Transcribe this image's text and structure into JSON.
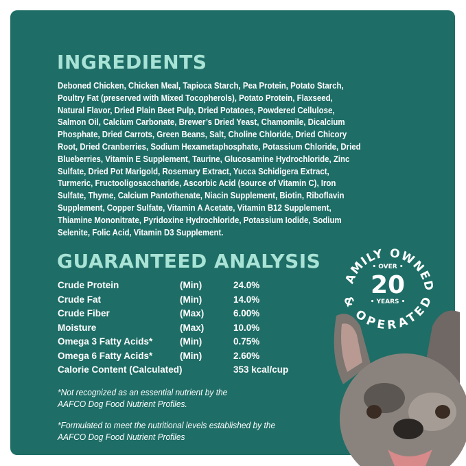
{
  "ingredients": {
    "title": "INGREDIENTS",
    "lines": [
      "Deboned Chicken, Chicken Meal, Tapioca Starch, Pea Protein, Potato Starch,",
      "Poultry Fat (preserved with Mixed Tocopherols), Potato Protein, Flaxseed,",
      "Natural Flavor, Dried Plain Beet Pulp, Dried Potatoes, Powdered Cellulose,",
      "Salmon Oil, Calcium Carbonate, Brewer’s Dried Yeast, Chamomile, Dicalcium",
      "Phosphate, Dried Carrots, Green Beans, Salt, Choline Chloride, Dried Chicory",
      "Root, Dried Cranberries, Sodium Hexametaphosphate, Potassium Chloride, Dried",
      "Blueberries, Vitamin E Supplement, Taurine, Glucosamine Hydrochloride, Zinc",
      "Sulfate, Dried Pot Marigold, Rosemary Extract, Yucca Schidigera Extract,",
      "Turmeric, Fructooligosaccharide, Ascorbic Acid (source of Vitamin C), Iron",
      "Sulfate, Thyme, Calcium Pantothenate, Niacin Supplement, Biotin, Riboflavin",
      "Supplement, Copper Sulfate, Vitamin A Acetate, Vitamin B12 Supplement,",
      "Thiamine Mononitrate, Pyridoxine Hydrochloride, Potassium Iodide, Sodium",
      "Selenite, Folic Acid, Vitamin D3 Supplement."
    ]
  },
  "analysis": {
    "title": "GUARANTEED ANALYSIS",
    "rows": [
      {
        "name": "Crude Protein",
        "basis": "(Min)",
        "value": "24.0%"
      },
      {
        "name": "Crude Fat",
        "basis": "(Min)",
        "value": "14.0%"
      },
      {
        "name": "Crude Fiber",
        "basis": "(Max)",
        "value": "6.00%"
      },
      {
        "name": "Moisture",
        "basis": "(Max)",
        "value": "10.0%"
      },
      {
        "name": "Omega 3 Fatty Acids*",
        "basis": "(Min)",
        "value": "0.75%"
      },
      {
        "name": "Omega 6 Fatty Acids*",
        "basis": "(Min)",
        "value": "2.60%"
      },
      {
        "name": "Calorie Content (Calculated)",
        "basis": "",
        "value": "353 kcal/cup"
      }
    ]
  },
  "notes": {
    "note1": [
      "*Not recognized as an essential nutrient by the",
      "AAFCO Dog Food Nutrient Profiles."
    ],
    "note2": [
      "*Formulated to meet the nutritional levels established by the",
      "AAFCO Dog Food Nutrient Profiles"
    ]
  },
  "badge": {
    "top_arc": "FAMILY OWNED",
    "bottom_arc": "& OPERATED",
    "over": "• OVER •",
    "number": "20",
    "years": "• YEARS •"
  },
  "colors": {
    "panel": "#1e6d66",
    "heading": "#a9e3d6",
    "text": "#ffffff"
  }
}
